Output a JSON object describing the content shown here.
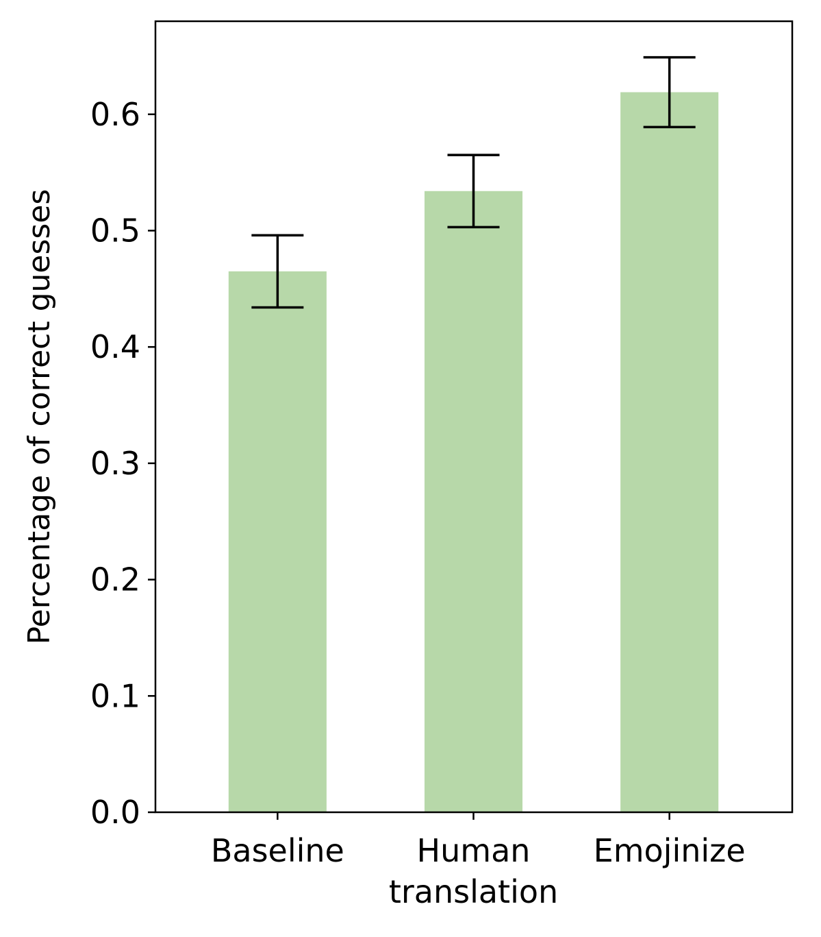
{
  "chart_data": {
    "type": "bar",
    "title": "",
    "xlabel": "",
    "ylabel": "Percentage of correct guesses",
    "categories": [
      [
        "Baseline"
      ],
      [
        "Human",
        "translation"
      ],
      [
        "Emojinize"
      ]
    ],
    "values": [
      0.465,
      0.534,
      0.619
    ],
    "error_bars": [
      {
        "lower": 0.434,
        "upper": 0.496
      },
      {
        "lower": 0.503,
        "upper": 0.565
      },
      {
        "lower": 0.589,
        "upper": 0.649
      }
    ],
    "ylim": [
      0.0,
      0.68
    ],
    "yticks": [
      "0.0",
      "0.1",
      "0.2",
      "0.3",
      "0.4",
      "0.5",
      "0.6"
    ],
    "bar_color": "#b7d8a9",
    "error_color": "#000000",
    "grid": false
  }
}
